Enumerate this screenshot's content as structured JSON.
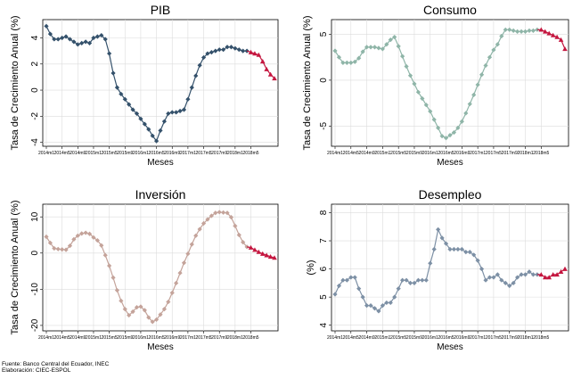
{
  "footer": {
    "source": "Fuente: Banco Central del Ecuador, INEC",
    "prepared_by": "Elaboración: CIEC-ESPOL"
  },
  "chart_data": [
    {
      "type": "line",
      "title": "PIB",
      "xlabel": "Meses",
      "ylabel": "Tasa de Crecimiento Anual (%)",
      "ylim": [
        -4.3,
        5.4
      ],
      "yticks": [
        -4,
        -2,
        0,
        2,
        4
      ],
      "grid": true,
      "x_tick_labels": [
        "2014m1",
        "2014m5",
        "2014m9",
        "2015m1",
        "2015m5",
        "2015m9",
        "2016m1",
        "2016m5",
        "2016m9",
        "2017m1",
        "2017m5",
        "2017m9",
        "2018m1",
        "2018m5"
      ],
      "colors": {
        "observed": "#34516b",
        "forecast": "#c4163f"
      },
      "series": [
        {
          "values": [
            4.9,
            4.3,
            3.9,
            3.9,
            4.0,
            4.1,
            3.9,
            3.7,
            3.5,
            3.6,
            3.7,
            3.6,
            4.0,
            4.1,
            4.2,
            3.9,
            2.8,
            1.3,
            0.2,
            -0.3,
            -0.7,
            -1.1,
            -1.5,
            -1.8,
            -2.2,
            -2.6,
            -3.0,
            -3.5,
            -3.9,
            -3.1,
            -2.4,
            -1.8,
            -1.7,
            -1.7,
            -1.6,
            -1.5,
            -0.7,
            0.2,
            1.1,
            1.9,
            2.5,
            2.8,
            2.9,
            3.0,
            3.1,
            3.1,
            3.3,
            3.3,
            3.2,
            3.1,
            3.0,
            3.0
          ]
        },
        {
          "values": [
            2.9,
            2.8,
            2.7,
            2.2,
            1.6,
            1.2,
            0.9
          ]
        }
      ]
    },
    {
      "type": "line",
      "title": "Consumo",
      "xlabel": "Meses",
      "ylabel": "Tasa de Crecimiento Anual (%)",
      "ylim": [
        -7.2,
        6.6
      ],
      "yticks": [
        -5,
        0,
        5
      ],
      "grid": true,
      "x_tick_labels": [
        "2014m1",
        "2014m5",
        "2014m9",
        "2015m1",
        "2015m5",
        "2015m9",
        "2016m1",
        "2016m5",
        "2016m9",
        "2017m1",
        "2017m5",
        "2017m9",
        "2018m1",
        "2018m5"
      ],
      "colors": {
        "observed": "#8fb5a8",
        "forecast": "#c4163f"
      },
      "series": [
        {
          "values": [
            3.2,
            2.5,
            1.9,
            1.9,
            1.9,
            2.0,
            2.4,
            3.1,
            3.6,
            3.6,
            3.6,
            3.5,
            3.4,
            3.9,
            4.4,
            4.7,
            3.7,
            2.6,
            1.5,
            0.5,
            -0.4,
            -1.3,
            -2.0,
            -2.7,
            -3.4,
            -4.3,
            -5.2,
            -6.1,
            -6.3,
            -6.0,
            -5.7,
            -5.2,
            -4.5,
            -3.6,
            -2.6,
            -1.6,
            -0.5,
            0.6,
            1.6,
            2.5,
            3.3,
            3.9,
            4.8,
            5.5,
            5.5,
            5.4,
            5.3,
            5.3,
            5.3,
            5.4,
            5.4,
            5.5
          ]
        },
        {
          "values": [
            5.5,
            5.3,
            5.1,
            4.9,
            4.7,
            4.4,
            3.4
          ]
        }
      ]
    },
    {
      "type": "line",
      "title": "Inversión",
      "xlabel": "Meses",
      "ylabel": "Tasa de Crecimiento Anual (%)",
      "ylim": [
        -21.5,
        13.5
      ],
      "yticks": [
        -20,
        -10,
        0,
        10
      ],
      "grid": true,
      "x_tick_labels": [
        "2014m1",
        "2014m5",
        "2014m9",
        "2015m1",
        "2015m5",
        "2015m9",
        "2016m1",
        "2016m5",
        "2016m9",
        "2017m1",
        "2017m5",
        "2017m9",
        "2018m1",
        "2018m5"
      ],
      "colors": {
        "observed": "#c4a39a",
        "forecast": "#c4163f"
      },
      "series": [
        {
          "values": [
            4.5,
            2.8,
            1.3,
            1.1,
            1.0,
            0.9,
            2.0,
            3.8,
            4.8,
            5.4,
            5.6,
            5.3,
            4.3,
            3.5,
            2.1,
            -0.6,
            -3.5,
            -6.8,
            -10.3,
            -13.2,
            -15.5,
            -17.2,
            -16.2,
            -15.0,
            -14.8,
            -15.8,
            -17.8,
            -19.0,
            -18.4,
            -17.0,
            -15.5,
            -13.5,
            -11.0,
            -8.3,
            -5.5,
            -2.7,
            -0.2,
            2.4,
            4.8,
            6.6,
            8.2,
            9.3,
            10.3,
            11.1,
            11.3,
            11.2,
            11.1,
            9.9,
            7.5,
            5.0,
            3.0,
            1.7
          ]
        },
        {
          "values": [
            1.5,
            0.9,
            0.3,
            -0.2,
            -0.6,
            -1.0,
            -1.3
          ]
        }
      ]
    },
    {
      "type": "line",
      "title": "Desempleo",
      "xlabel": "Meses",
      "ylabel": "(%)",
      "ylim": [
        3.8,
        8.3
      ],
      "yticks": [
        4,
        5,
        6,
        7,
        8
      ],
      "grid": true,
      "x_tick_labels": [
        "2014m1",
        "2014m5",
        "2014m9",
        "2015m1",
        "2015m5",
        "2015m9",
        "2016m1",
        "2016m5",
        "2016m9",
        "2017m1",
        "2017m5",
        "2017m9",
        "2018m1",
        "2018m5"
      ],
      "colors": {
        "observed": "#7d90a5",
        "forecast": "#c4163f"
      },
      "series": [
        {
          "values": [
            5.1,
            5.4,
            5.6,
            5.6,
            5.7,
            5.7,
            5.3,
            5.0,
            4.7,
            4.7,
            4.6,
            4.5,
            4.7,
            4.8,
            4.8,
            5.0,
            5.3,
            5.6,
            5.6,
            5.5,
            5.5,
            5.6,
            5.6,
            5.6,
            6.2,
            6.7,
            7.4,
            7.1,
            6.9,
            6.7,
            6.7,
            6.7,
            6.7,
            6.6,
            6.6,
            6.5,
            6.3,
            6.0,
            5.6,
            5.7,
            5.7,
            5.8,
            5.6,
            5.5,
            5.4,
            5.5,
            5.7,
            5.8,
            5.8,
            5.9,
            5.8,
            5.8
          ]
        },
        {
          "values": [
            5.8,
            5.7,
            5.7,
            5.8,
            5.8,
            5.9,
            6.0
          ]
        }
      ]
    }
  ]
}
